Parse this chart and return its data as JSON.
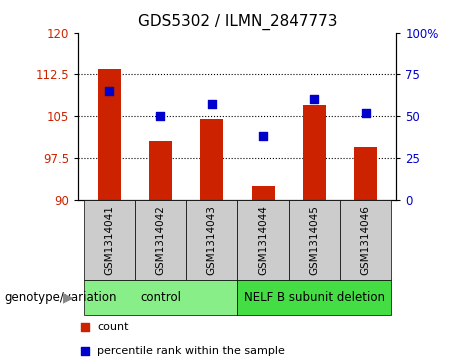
{
  "title": "GDS5302 / ILMN_2847773",
  "samples": [
    "GSM1314041",
    "GSM1314042",
    "GSM1314043",
    "GSM1314044",
    "GSM1314045",
    "GSM1314046"
  ],
  "bar_values": [
    113.5,
    100.5,
    104.5,
    92.5,
    107.0,
    99.5
  ],
  "percentile_values": [
    65,
    50,
    57,
    38,
    60,
    52
  ],
  "bar_color": "#cc2200",
  "dot_color": "#0000cc",
  "ylim_left": [
    90,
    120
  ],
  "ylim_right": [
    0,
    100
  ],
  "yticks_left": [
    90,
    97.5,
    105,
    112.5,
    120
  ],
  "ytick_labels_left": [
    "90",
    "97.5",
    "105",
    "112.5",
    "120"
  ],
  "yticks_right": [
    0,
    25,
    50,
    75,
    100
  ],
  "ytick_labels_right": [
    "0",
    "25",
    "50",
    "75",
    "100%"
  ],
  "groups": [
    {
      "label": "control",
      "indices": [
        0,
        1,
        2
      ],
      "color": "#88ee88"
    },
    {
      "label": "NELF B subunit deletion",
      "indices": [
        3,
        4,
        5
      ],
      "color": "#44dd44"
    }
  ],
  "group_label_prefix": "genotype/variation",
  "legend_items": [
    {
      "label": "count",
      "color": "#cc2200"
    },
    {
      "label": "percentile rank within the sample",
      "color": "#0000cc"
    }
  ],
  "bar_width": 0.45,
  "background_plot": "#ffffff",
  "background_label": "#cccccc",
  "dot_size": 40,
  "base_value": 90
}
